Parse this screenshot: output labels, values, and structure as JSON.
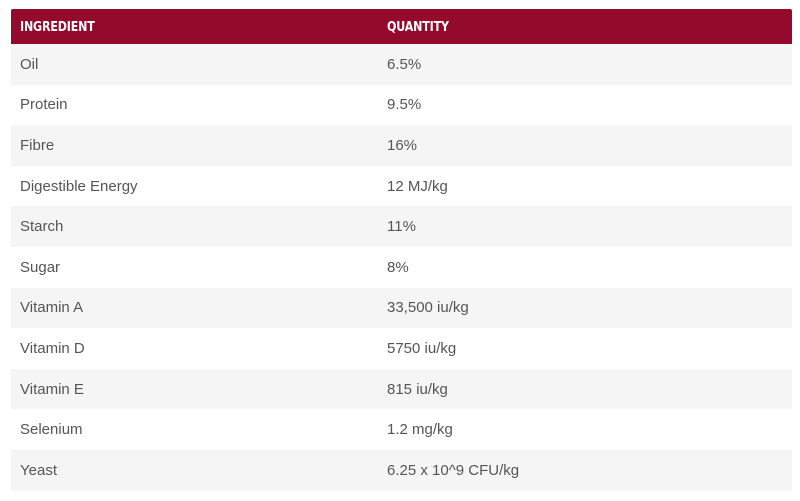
{
  "colors": {
    "header_bg": "#930a2c",
    "header_text": "#ffffff",
    "row_alt_bg": "#f5f5f5",
    "row_text": "#555555"
  },
  "table": {
    "headers": [
      "INGREDIENT",
      "QUANTITY"
    ],
    "rows": [
      {
        "ingredient": "Oil",
        "quantity": "6.5%"
      },
      {
        "ingredient": "Protein",
        "quantity": "9.5%"
      },
      {
        "ingredient": "Fibre",
        "quantity": "16%"
      },
      {
        "ingredient": "Digestible Energy",
        "quantity": "12 MJ/kg"
      },
      {
        "ingredient": "Starch",
        "quantity": "11%"
      },
      {
        "ingredient": "Sugar",
        "quantity": "8%"
      },
      {
        "ingredient": "Vitamin A",
        "quantity": "33,500 iu/kg"
      },
      {
        "ingredient": "Vitamin D",
        "quantity": "5750 iu/kg"
      },
      {
        "ingredient": "Vitamin E",
        "quantity": "815 iu/kg"
      },
      {
        "ingredient": "Selenium",
        "quantity": "1.2 mg/kg"
      },
      {
        "ingredient": "Yeast",
        "quantity": "6.25 x 10^9 CFU/kg"
      }
    ]
  }
}
